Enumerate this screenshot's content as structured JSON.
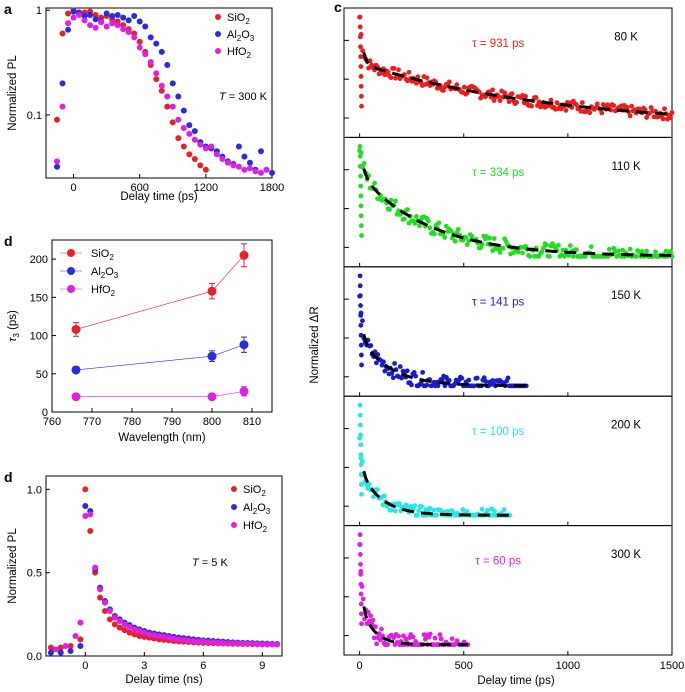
{
  "panel_labels": {
    "a": "a",
    "c": "c",
    "d1": "d",
    "d2": "d"
  },
  "legend_materials": {
    "sio2": {
      "base": "SiO",
      "sub": "2"
    },
    "al2o3": {
      "part1": "Al",
      "sub1": "2",
      "part2": "O",
      "sub2": "3"
    },
    "hfo2": {
      "base": "HfO",
      "sub": "2"
    }
  },
  "colors": {
    "sio2": "#e8202a",
    "al2o3": "#2a2ae0",
    "hfo2": "#e020e0",
    "c80": "#ee1c1c",
    "c110": "#22dd22",
    "c150": "#1a1ad0",
    "c200": "#22e8e8",
    "c300": "#e020e0"
  },
  "chart_data": [
    {
      "id": "panel-a",
      "type": "scatter",
      "title": "",
      "xlabel": "Delay time (ps)",
      "ylabel": "Normalized PL",
      "yscale": "log",
      "xlim": [
        -250,
        1800
      ],
      "ylim": [
        0.025,
        1.05
      ],
      "xticks": [
        0,
        600,
        1200,
        1800
      ],
      "xtick_labels": [
        "0",
        "600",
        "1200",
        "1800"
      ],
      "yticks": [
        0.1,
        1
      ],
      "ytick_labels": [
        "0.1",
        "1"
      ],
      "annotation": {
        "italic": "T",
        "rest": " = 300 K"
      },
      "legend": [
        "SiO2",
        "Al2O3",
        "HfO2"
      ],
      "series": [
        {
          "name": "SiO2",
          "color_key": "sio2",
          "x": [
            -150,
            -100,
            -50,
            0,
            50,
            100,
            150,
            200,
            250,
            300,
            350,
            400,
            450,
            500,
            550,
            600,
            650,
            700,
            750,
            800,
            850,
            900,
            950,
            1000,
            1050,
            1100,
            1150,
            1200
          ],
          "y": [
            0.09,
            0.6,
            0.93,
            1.0,
            0.93,
            0.95,
            0.97,
            0.9,
            0.85,
            0.88,
            0.82,
            0.78,
            0.72,
            0.66,
            0.6,
            0.5,
            0.4,
            0.3,
            0.22,
            0.17,
            0.12,
            0.085,
            0.06,
            0.05,
            0.042,
            0.038,
            0.033,
            0.03
          ]
        },
        {
          "name": "Al2O3",
          "color_key": "al2o3",
          "x": [
            -150,
            -100,
            -50,
            0,
            50,
            100,
            150,
            200,
            250,
            300,
            350,
            400,
            450,
            500,
            550,
            600,
            650,
            700,
            750,
            800,
            850,
            900,
            950,
            1000,
            1050,
            1100,
            1150,
            1200,
            1250,
            1300,
            1350,
            1400,
            1450,
            1500,
            1550,
            1600,
            1650,
            1700,
            1750,
            1800
          ],
          "y": [
            0.032,
            0.2,
            0.65,
            0.97,
            0.95,
            0.88,
            0.9,
            0.82,
            0.78,
            0.93,
            0.88,
            0.9,
            0.85,
            0.8,
            0.88,
            0.78,
            0.7,
            0.55,
            0.48,
            0.4,
            0.3,
            0.2,
            0.15,
            0.11,
            0.08,
            0.07,
            0.055,
            0.05,
            0.048,
            0.045,
            0.04,
            0.036,
            0.034,
            0.05,
            0.04,
            0.035,
            0.03,
            0.045,
            0.03,
            0.028
          ]
        },
        {
          "name": "HfO2",
          "color_key": "hfo2",
          "x": [
            -150,
            -100,
            -50,
            0,
            50,
            100,
            150,
            200,
            250,
            300,
            350,
            400,
            450,
            500,
            550,
            600,
            650,
            700,
            750,
            800,
            850,
            900,
            950,
            1000,
            1050,
            1100,
            1150,
            1200,
            1250,
            1300,
            1350,
            1400,
            1450,
            1500,
            1550,
            1600,
            1650,
            1700,
            1750
          ],
          "y": [
            0.036,
            0.12,
            0.75,
            0.85,
            0.9,
            0.8,
            0.72,
            0.68,
            0.77,
            0.7,
            0.75,
            0.72,
            0.66,
            0.62,
            0.55,
            0.44,
            0.38,
            0.32,
            0.25,
            0.19,
            0.15,
            0.12,
            0.09,
            0.075,
            0.066,
            0.058,
            0.052,
            0.048,
            0.05,
            0.042,
            0.038,
            0.035,
            0.033,
            0.032,
            0.03,
            0.031,
            0.029,
            0.028,
            0.03
          ]
        }
      ]
    },
    {
      "id": "panel-d1",
      "type": "line",
      "title": "",
      "xlabel": "Wavelength (nm)",
      "ylabel": "τ3 (ps)",
      "xlim": [
        760,
        815
      ],
      "ylim": [
        0,
        225
      ],
      "xticks": [
        760,
        770,
        780,
        790,
        800,
        810
      ],
      "xtick_labels": [
        "760",
        "770",
        "780",
        "790",
        "800",
        "810"
      ],
      "yticks": [
        0,
        50,
        100,
        150,
        200
      ],
      "ytick_labels": [
        "0",
        "50",
        "100",
        "150",
        "200"
      ],
      "legend": [
        "SiO2",
        "Al2O3",
        "HfO2"
      ],
      "series": [
        {
          "name": "SiO2",
          "color_key": "sio2",
          "x": [
            766,
            800,
            808
          ],
          "y": [
            108,
            158,
            205
          ],
          "err": [
            9,
            10,
            15
          ]
        },
        {
          "name": "Al2O3",
          "color_key": "al2o3",
          "x": [
            766,
            800,
            808
          ],
          "y": [
            55,
            73,
            88
          ],
          "err": [
            4,
            7,
            10
          ]
        },
        {
          "name": "HfO2",
          "color_key": "hfo2",
          "x": [
            766,
            800,
            808
          ],
          "y": [
            20,
            20,
            27
          ],
          "err": [
            3,
            3,
            6
          ]
        }
      ]
    },
    {
      "id": "panel-d2",
      "type": "scatter",
      "title": "",
      "xlabel": "Delay time (ns)",
      "ylabel": "Normalized PL",
      "xlim": [
        -2,
        10
      ],
      "ylim": [
        0,
        1.08
      ],
      "xticks": [
        0,
        3,
        6,
        9
      ],
      "xtick_labels": [
        "0",
        "3",
        "6",
        "9"
      ],
      "yticks": [
        0,
        0.5,
        1.0
      ],
      "ytick_labels": [
        "0.0",
        "0.5",
        "1.0"
      ],
      "annotation": {
        "italic": "T",
        "rest": " = 5 K"
      },
      "legend": [
        "SiO2",
        "Al2O3",
        "HfO2"
      ],
      "series": [
        {
          "name": "SiO2",
          "color_key": "sio2",
          "x": [
            -1.75,
            -1.25,
            -0.75,
            -0.25,
            0,
            0.25,
            0.5,
            0.75,
            1,
            1.25,
            1.5,
            1.75,
            2,
            2.25,
            2.5,
            2.75,
            3,
            3.25,
            3.5,
            3.75,
            4,
            4.25,
            4.5,
            4.75,
            5,
            5.25,
            5.5,
            5.75,
            6,
            6.25,
            6.5,
            6.75,
            7,
            7.25,
            7.5,
            7.75,
            8,
            8.25,
            8.5,
            8.75,
            9,
            9.25,
            9.5,
            9.75
          ],
          "y": [
            0.05,
            0.05,
            0.06,
            0.1,
            1.0,
            0.75,
            0.5,
            0.35,
            0.27,
            0.22,
            0.19,
            0.17,
            0.155,
            0.14,
            0.13,
            0.12,
            0.115,
            0.11,
            0.105,
            0.1,
            0.097,
            0.094,
            0.09,
            0.088,
            0.086,
            0.084,
            0.082,
            0.08,
            0.079,
            0.078,
            0.077,
            0.076,
            0.075,
            0.074,
            0.073,
            0.073,
            0.072,
            0.072,
            0.071,
            0.07,
            0.07,
            0.07,
            0.07,
            0.07
          ]
        },
        {
          "name": "Al2O3",
          "color_key": "al2o3",
          "x": [
            -1.75,
            -1.25,
            -0.75,
            -0.25,
            0,
            0.25,
            0.5,
            0.75,
            1,
            1.25,
            1.5,
            1.75,
            2,
            2.25,
            2.5,
            2.75,
            3,
            3.25,
            3.5,
            3.75,
            4,
            4.25,
            4.5,
            4.75,
            5,
            5.25,
            5.5,
            5.75,
            6,
            6.25,
            6.5,
            6.75,
            7,
            7.25,
            7.5,
            7.75,
            8,
            8.25,
            8.5,
            8.75,
            9,
            9.25,
            9.5,
            9.75
          ],
          "y": [
            0.02,
            0.02,
            0.03,
            0.06,
            0.9,
            0.87,
            0.52,
            0.41,
            0.33,
            0.28,
            0.24,
            0.22,
            0.2,
            0.185,
            0.17,
            0.16,
            0.15,
            0.14,
            0.135,
            0.13,
            0.125,
            0.12,
            0.115,
            0.11,
            0.107,
            0.104,
            0.1,
            0.097,
            0.094,
            0.092,
            0.09,
            0.088,
            0.086,
            0.084,
            0.082,
            0.08,
            0.079,
            0.078,
            0.077,
            0.076,
            0.075,
            0.074,
            0.073,
            0.072
          ]
        },
        {
          "name": "HfO2",
          "color_key": "hfo2",
          "x": [
            -1.5,
            -1.0,
            -0.5,
            -0.25,
            0,
            0.25,
            0.5,
            0.75,
            1,
            1.25,
            1.5,
            1.75,
            2,
            2.25,
            2.5,
            2.75,
            3,
            3.25,
            3.5,
            3.75,
            4,
            4.25,
            4.5,
            4.75,
            5,
            5.25,
            5.5,
            5.75,
            6,
            6.25,
            6.5,
            6.75,
            7,
            7.25,
            7.5,
            7.75,
            8,
            8.25,
            8.5,
            8.75,
            9,
            9.25,
            9.5,
            9.75
          ],
          "y": [
            0.04,
            0.06,
            0.12,
            0.2,
            0.84,
            0.85,
            0.53,
            0.4,
            0.32,
            0.27,
            0.23,
            0.21,
            0.19,
            0.175,
            0.16,
            0.15,
            0.14,
            0.13,
            0.125,
            0.12,
            0.115,
            0.11,
            0.105,
            0.1,
            0.097,
            0.094,
            0.09,
            0.088,
            0.086,
            0.084,
            0.082,
            0.08,
            0.078,
            0.077,
            0.076,
            0.075,
            0.074,
            0.073,
            0.072,
            0.071,
            0.07,
            0.07,
            0.07,
            0.07
          ]
        }
      ]
    },
    {
      "id": "panel-c",
      "type": "scatter",
      "title": "",
      "xlabel": "Delay time (ps)",
      "ylabel": "Normalized ΔR",
      "xlim": [
        -75,
        1500
      ],
      "xticks": [
        0,
        500,
        1000,
        1500
      ],
      "xtick_labels": [
        "0",
        "500",
        "1000",
        "1500"
      ],
      "subplots": [
        {
          "temperature": "80 K",
          "tau_label": "τ = 931 ps",
          "tau": 931,
          "color_key": "c80",
          "x_end": 1500,
          "a_fast": 0.42,
          "tau_fast": 15,
          "b_slow": 0.58,
          "noise": 0.05,
          "n_points": 210
        },
        {
          "temperature": "110 K",
          "tau_label": "τ = 334 ps",
          "tau": 334,
          "color_key": "c110",
          "x_end": 1500,
          "a_fast": 0.25,
          "tau_fast": 20,
          "b_slow": 0.75,
          "noise": 0.07,
          "n_points": 210
        },
        {
          "temperature": "150 K",
          "tau_label": "τ = 141 ps",
          "tau": 141,
          "color_key": "c150",
          "x_end": 800,
          "a_fast": 0.3,
          "tau_fast": 15,
          "b_slow": 0.45,
          "noise": 0.07,
          "n_points": 120
        },
        {
          "temperature": "200 K",
          "tau_label": "τ = 100 ps",
          "tau": 100,
          "color_key": "c200",
          "x_end": 720,
          "a_fast": 0.3,
          "tau_fast": 12,
          "b_slow": 0.42,
          "noise": 0.06,
          "n_points": 110
        },
        {
          "temperature": "300 K",
          "tau_label": "τ = 60 ps",
          "tau": 60,
          "color_key": "c300",
          "x_end": 520,
          "a_fast": 0.45,
          "tau_fast": 10,
          "b_slow": 0.4,
          "noise": 0.1,
          "n_points": 90
        }
      ]
    }
  ]
}
